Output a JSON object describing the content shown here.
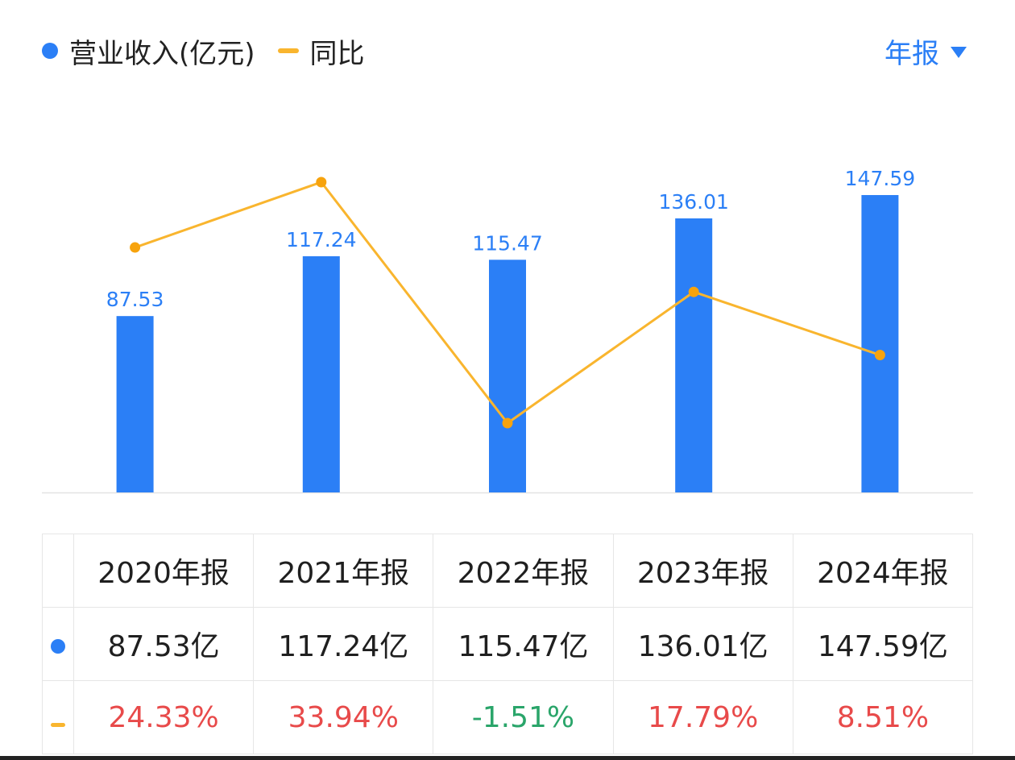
{
  "legend": {
    "revenue_label": "营业收入(亿元)",
    "yoy_label": "同比"
  },
  "period_selector": {
    "label": "年报"
  },
  "colors": {
    "bar": "#2b7ff6",
    "line": "#f9b52e",
    "line_dot": "#f7a30d",
    "positive": "#e84a4a",
    "negative": "#2aa56a",
    "bar_label": "#2b7ff6"
  },
  "chart_data": {
    "type": "bar",
    "categories": [
      "2020年报",
      "2021年报",
      "2022年报",
      "2023年报",
      "2024年报"
    ],
    "series": [
      {
        "name": "营业收入(亿元)",
        "type": "bar",
        "values": [
          87.53,
          117.24,
          115.47,
          136.01,
          147.59
        ],
        "labels": [
          "87.53",
          "117.24",
          "115.47",
          "136.01",
          "147.59"
        ]
      },
      {
        "name": "同比",
        "type": "line",
        "values": [
          24.33,
          33.94,
          -1.51,
          17.79,
          8.51
        ]
      }
    ],
    "bar_ylim": [
      0,
      160
    ],
    "line_ylim": [
      -2.2,
      36.0
    ]
  },
  "table": {
    "headers": [
      "2020年报",
      "2021年报",
      "2022年报",
      "2023年报",
      "2024年报"
    ],
    "revenue": [
      "87.53亿",
      "117.24亿",
      "115.47亿",
      "136.01亿",
      "147.59亿"
    ],
    "yoy": [
      "24.33%",
      "33.94%",
      "-1.51%",
      "17.79%",
      "8.51%"
    ]
  }
}
